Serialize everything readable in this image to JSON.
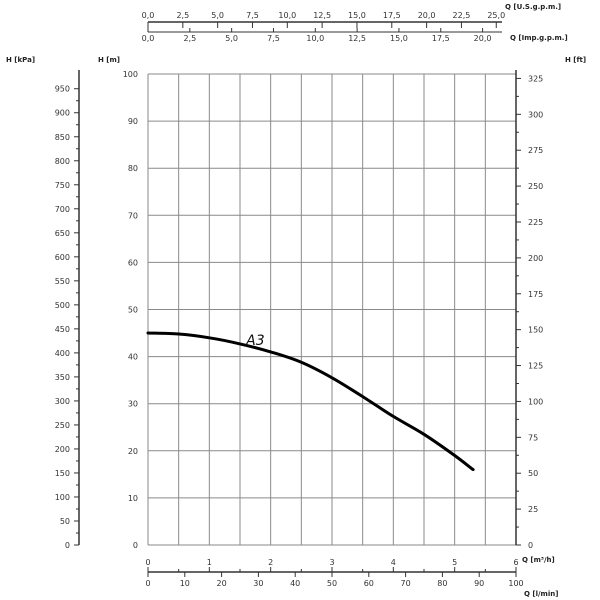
{
  "chart_data": {
    "type": "line",
    "series": [
      {
        "name": "A3",
        "x": [
          0,
          0.5,
          1,
          1.5,
          2,
          2.5,
          3,
          3.5,
          4,
          4.5,
          5,
          5.3
        ],
        "values": [
          45,
          44.8,
          44,
          42.7,
          41,
          38.8,
          35.5,
          31.5,
          27.3,
          23.5,
          19,
          16
        ]
      }
    ],
    "xlim": [
      0,
      6
    ],
    "ylim": [
      0,
      100
    ],
    "grid": true,
    "axes": {
      "left_outer": {
        "label": "H [kPa]",
        "ticks": [
          "0",
          "50",
          "100",
          "150",
          "200",
          "250",
          "300",
          "350",
          "400",
          "450",
          "500",
          "550",
          "600",
          "650",
          "700",
          "750",
          "800",
          "850",
          "900",
          "950"
        ]
      },
      "left_inner": {
        "label": "H [m]",
        "ticks": [
          "0",
          "10",
          "20",
          "30",
          "40",
          "50",
          "60",
          "70",
          "80",
          "90",
          "100"
        ]
      },
      "right": {
        "label": "H [ft]",
        "ticks": [
          "0",
          "25",
          "50",
          "75",
          "100",
          "125",
          "150",
          "175",
          "200",
          "225",
          "250",
          "275",
          "300",
          "325"
        ]
      },
      "bottom_primary": {
        "label": "Q [m³/h]",
        "ticks": [
          "0",
          "1",
          "2",
          "3",
          "4",
          "5",
          "6"
        ]
      },
      "bottom_secondary": {
        "label": "Q [l/min]",
        "ticks": [
          "0",
          "10",
          "20",
          "30",
          "40",
          "50",
          "60",
          "70",
          "80",
          "90",
          "100"
        ]
      },
      "top_usgpm": {
        "label": "Q [U.S.g.p.m.]",
        "ticks": [
          "0,0",
          "2,5",
          "5,0",
          "7,5",
          "10,0",
          "12,5",
          "15,0",
          "17,5",
          "20,0",
          "22,5",
          "25,0"
        ]
      },
      "top_impgpm": {
        "label": "Q [Imp.g.p.m.]",
        "ticks": [
          "0,0",
          "2,5",
          "5,0",
          "7,5",
          "10,0",
          "12,5",
          "15,0",
          "17,5",
          "20,0"
        ]
      }
    }
  }
}
